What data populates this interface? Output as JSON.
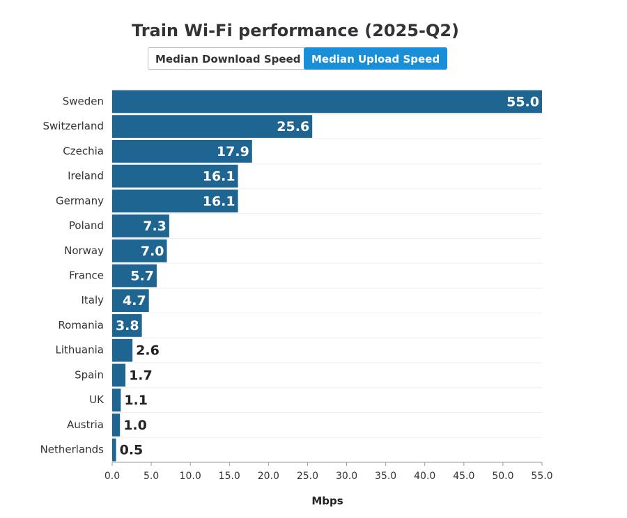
{
  "chart_data": {
    "type": "bar",
    "orientation": "horizontal",
    "title": "Train Wi-Fi performance (2025-Q2)",
    "toggle_buttons": [
      {
        "label": "Median Download Speed",
        "active": false
      },
      {
        "label": "Median Upload Speed",
        "active": true
      }
    ],
    "categories": [
      "Sweden",
      "Switzerland",
      "Czechia",
      "Ireland",
      "Germany",
      "Poland",
      "Norway",
      "France",
      "Italy",
      "Romania",
      "Lithuania",
      "Spain",
      "UK",
      "Austria",
      "Netherlands"
    ],
    "values": [
      55.0,
      25.6,
      17.9,
      16.1,
      16.1,
      7.3,
      7.0,
      5.7,
      4.7,
      3.8,
      2.6,
      1.7,
      1.1,
      1.0,
      0.5
    ],
    "value_labels": [
      "55.0",
      "25.6",
      "17.9",
      "16.1",
      "16.1",
      "7.3",
      "7.0",
      "5.7",
      "4.7",
      "3.8",
      "2.6",
      "1.7",
      "1.1",
      "1.0",
      "0.5"
    ],
    "color": "#1f6591",
    "x_label": "Mbps",
    "xlim": [
      0,
      55
    ],
    "xticks": [
      {
        "value": 0,
        "label": "0.0"
      },
      {
        "value": 5,
        "label": "5.0"
      },
      {
        "value": 10,
        "label": "10.0"
      },
      {
        "value": 15,
        "label": "15.0"
      },
      {
        "value": 20,
        "label": "20.0"
      },
      {
        "value": 25,
        "label": "25.0"
      },
      {
        "value": 30,
        "label": "30.0"
      },
      {
        "value": 35,
        "label": "35.0"
      },
      {
        "value": 40,
        "label": "40.0"
      },
      {
        "value": 45,
        "label": "45.0"
      },
      {
        "value": 50,
        "label": "50.0"
      },
      {
        "value": 55,
        "label": "55.0"
      }
    ],
    "grid": true
  }
}
